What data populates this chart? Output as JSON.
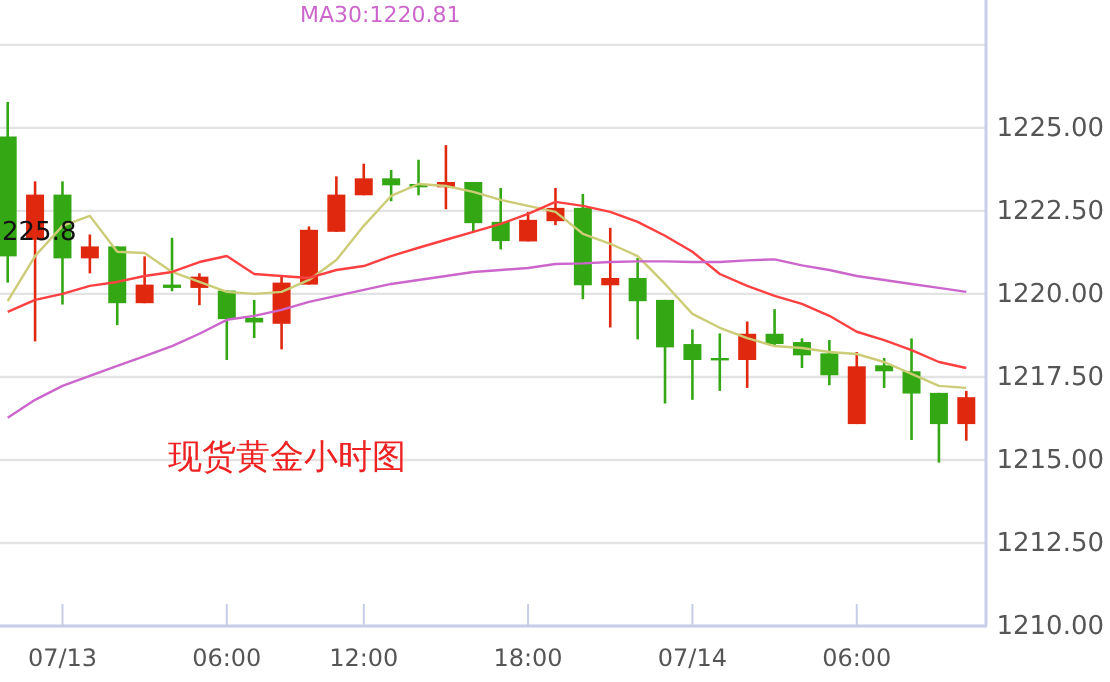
{
  "chart_data": {
    "type": "candlestick",
    "categories": [
      null,
      null,
      "07/13",
      null,
      null,
      null,
      null,
      null,
      "06:00",
      null,
      null,
      null,
      null,
      "12:00",
      null,
      null,
      null,
      null,
      null,
      "18:00",
      null,
      null,
      null,
      null,
      null,
      "07/14",
      null,
      null,
      null,
      null,
      null,
      "06:00",
      null,
      null,
      null,
      null
    ],
    "ohlc": [
      [
        1224.74,
        1225.78,
        1220.34,
        1221.13
      ],
      [
        1221.63,
        1223.39,
        1218.57,
        1222.99
      ],
      [
        1222.99,
        1223.39,
        1219.68,
        1221.07
      ],
      [
        1221.07,
        1221.79,
        1220.62,
        1221.43
      ],
      [
        1221.43,
        1221.43,
        1219.06,
        1219.72
      ],
      [
        1219.72,
        1221.13,
        1219.72,
        1220.28
      ],
      [
        1220.28,
        1221.69,
        1220.08,
        1220.18
      ],
      [
        1220.18,
        1220.62,
        1219.66,
        1220.52
      ],
      [
        1220.1,
        1220.1,
        1218.01,
        1219.24
      ],
      [
        1219.28,
        1219.82,
        1218.67,
        1219.14
      ],
      [
        1219.1,
        1220.52,
        1218.33,
        1220.34
      ],
      [
        1220.28,
        1222.03,
        1220.28,
        1221.93
      ],
      [
        1221.87,
        1223.54,
        1221.87,
        1222.99
      ],
      [
        1222.97,
        1223.92,
        1222.97,
        1223.48
      ],
      [
        1223.48,
        1223.73,
        1222.79,
        1223.27
      ],
      [
        1223.31,
        1224.04,
        1222.97,
        1223.21
      ],
      [
        1223.21,
        1224.48,
        1222.55,
        1223.37
      ],
      [
        1223.37,
        1223.37,
        1221.89,
        1222.13
      ],
      [
        1222.17,
        1223.19,
        1221.34,
        1221.59
      ],
      [
        1221.58,
        1222.47,
        1221.58,
        1222.23
      ],
      [
        1222.19,
        1223.19,
        1222.07,
        1222.59
      ],
      [
        1222.59,
        1223.01,
        1219.84,
        1220.26
      ],
      [
        1220.26,
        1221.99,
        1218.99,
        1220.48
      ],
      [
        1220.48,
        1221.08,
        1218.63,
        1219.78
      ],
      [
        1219.82,
        1219.82,
        1216.7,
        1218.39
      ],
      [
        1218.49,
        1218.93,
        1216.81,
        1218.01
      ],
      [
        1218.07,
        1218.81,
        1217.08,
        1218.01
      ],
      [
        1218.01,
        1219.17,
        1217.17,
        1218.8
      ],
      [
        1218.8,
        1219.54,
        1218.42,
        1218.49
      ],
      [
        1218.55,
        1218.66,
        1217.77,
        1218.15
      ],
      [
        1218.21,
        1218.61,
        1217.25,
        1217.55
      ],
      [
        1216.08,
        1218.25,
        1216.08,
        1217.82
      ],
      [
        1217.85,
        1218.07,
        1217.17,
        1217.67
      ],
      [
        1217.67,
        1218.66,
        1215.6,
        1217.0
      ],
      [
        1217.02,
        1217.02,
        1214.92,
        1216.08
      ],
      [
        1216.08,
        1217.08,
        1215.58,
        1216.89
      ]
    ],
    "colors": [
      "#33a814",
      "#e0280f",
      "#33a814",
      "#e0280f",
      "#33a814",
      "#e0280f",
      "#33a814",
      "#e0280f",
      "#33a814",
      "#33a814",
      "#e0280f",
      "#e0280f",
      "#e0280f",
      "#e0280f",
      "#33a814",
      "#33a814",
      "#e0280f",
      "#33a814",
      "#33a814",
      "#e0280f",
      "#e0280f",
      "#33a814",
      "#e0280f",
      "#33a814",
      "#33a814",
      "#33a814",
      "#33a814",
      "#e0280f",
      "#33a814",
      "#33a814",
      "#33a814",
      "#e0280f",
      "#33a814",
      "#33a814",
      "#33a814",
      "#e0280f"
    ],
    "series": [
      {
        "type": "line",
        "color": "#cccc77",
        "values": [
          1219.78,
          1221.14,
          1222.05,
          1222.35,
          1221.27,
          1221.23,
          1220.66,
          1220.36,
          1220.06,
          1220.0,
          1220.06,
          1220.42,
          1221.02,
          1222.05,
          1222.95,
          1223.31,
          1223.25,
          1223.07,
          1222.83,
          1222.65,
          1222.47,
          1221.81,
          1221.51,
          1221.14,
          1220.3,
          1219.4,
          1218.98,
          1218.67,
          1218.43,
          1218.37,
          1218.25,
          1218.19,
          1217.95,
          1217.59,
          1217.23,
          1217.17
        ]
      },
      {
        "type": "line",
        "color": "#ff4040",
        "values": [
          1219.46,
          1219.82,
          1220.0,
          1220.24,
          1220.36,
          1220.54,
          1220.66,
          1220.96,
          1221.14,
          1220.6,
          1220.54,
          1220.48,
          1220.72,
          1220.84,
          1221.14,
          1221.39,
          1221.63,
          1221.87,
          1222.11,
          1222.41,
          1222.77,
          1222.65,
          1222.47,
          1222.17,
          1221.75,
          1221.27,
          1220.6,
          1220.24,
          1219.94,
          1219.7,
          1219.34,
          1218.86,
          1218.61,
          1218.31,
          1217.95,
          1217.77
        ]
      },
      {
        "type": "line",
        "name": "MA30:1220.81",
        "color": "#cc66cc",
        "values": [
          1216.27,
          1216.81,
          1217.23,
          1217.53,
          1217.83,
          1218.13,
          1218.43,
          1218.8,
          1219.22,
          1219.34,
          1219.52,
          1219.76,
          1219.94,
          1220.12,
          1220.3,
          1220.42,
          1220.54,
          1220.66,
          1220.72,
          1220.78,
          1220.9,
          1220.92,
          1220.96,
          1220.98,
          1220.98,
          1220.96,
          1220.96,
          1221.01,
          1221.04,
          1220.86,
          1220.72,
          1220.54,
          1220.42,
          1220.3,
          1220.18,
          1220.06
        ]
      }
    ],
    "ylim": [
      1210,
      1228.85
    ],
    "yticks": [
      {
        "value": 1210,
        "label": "1210.00"
      },
      {
        "value": 1212.5,
        "label": "1212.50"
      },
      {
        "value": 1215,
        "label": "1215.00"
      },
      {
        "value": 1217.5,
        "label": "1217.50"
      },
      {
        "value": 1220,
        "label": "1220.00"
      },
      {
        "value": 1222.5,
        "label": "1222.50"
      },
      {
        "value": 1225,
        "label": "1225.00"
      },
      {
        "value": 1227.5,
        "label": null
      }
    ],
    "grid": "y",
    "legend": "top",
    "annotations": [
      "现货黄金小时图",
      "225.8"
    ]
  }
}
